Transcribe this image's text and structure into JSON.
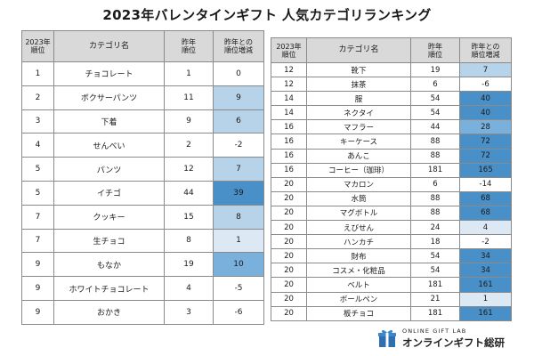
{
  "title": "2023年バレンタインギフト 人気カテゴリランキング",
  "headers": {
    "rank": [
      "2023年",
      "順位"
    ],
    "category": "カテゴリ名",
    "prev_rank": [
      "昨年",
      "順位"
    ],
    "change": [
      "昨年との",
      "順位増減"
    ]
  },
  "colors": {
    "header_bg": "#d9d9d9",
    "change_zero_or_negative": "#ffffff",
    "change_small": "#dce9f5",
    "change_medium": "#b7d3ea",
    "change_large": "#7ab0dc",
    "change_largest": "#4a90c8"
  },
  "footer": {
    "logo_small": "ONLINE GIFT LAB",
    "logo_big": "オンラインギフト総研",
    "logo_icon": "gift-box-icon"
  },
  "chart_data": {
    "type": "table",
    "title": "2023年バレンタインギフト 人気カテゴリランキング",
    "columns": [
      "2023年順位",
      "カテゴリ名",
      "昨年順位",
      "昨年との順位増減"
    ],
    "left_rows": [
      {
        "rank": "1",
        "name": "チョコレート",
        "prev": "1",
        "change": "0"
      },
      {
        "rank": "2",
        "name": "ボクサーパンツ",
        "prev": "11",
        "change": "9"
      },
      {
        "rank": "3",
        "name": "下着",
        "prev": "9",
        "change": "6"
      },
      {
        "rank": "4",
        "name": "せんべい",
        "prev": "2",
        "change": "-2"
      },
      {
        "rank": "5",
        "name": "パンツ",
        "prev": "12",
        "change": "7"
      },
      {
        "rank": "5",
        "name": "イチゴ",
        "prev": "44",
        "change": "39"
      },
      {
        "rank": "7",
        "name": "クッキー",
        "prev": "15",
        "change": "8"
      },
      {
        "rank": "7",
        "name": "生チョコ",
        "prev": "8",
        "change": "1"
      },
      {
        "rank": "9",
        "name": "もなか",
        "prev": "19",
        "change": "10"
      },
      {
        "rank": "9",
        "name": "ホワイトチョコレート",
        "prev": "4",
        "change": "-5"
      },
      {
        "rank": "9",
        "name": "おかき",
        "prev": "3",
        "change": "-6"
      }
    ],
    "right_rows": [
      {
        "rank": "12",
        "name": "靴下",
        "prev": "19",
        "change": "7"
      },
      {
        "rank": "12",
        "name": "抹茶",
        "prev": "6",
        "change": "-6"
      },
      {
        "rank": "14",
        "name": "服",
        "prev": "54",
        "change": "40"
      },
      {
        "rank": "14",
        "name": "ネクタイ",
        "prev": "54",
        "change": "40"
      },
      {
        "rank": "16",
        "name": "マフラー",
        "prev": "44",
        "change": "28"
      },
      {
        "rank": "16",
        "name": "キーケース",
        "prev": "88",
        "change": "72"
      },
      {
        "rank": "16",
        "name": "あんこ",
        "prev": "88",
        "change": "72"
      },
      {
        "rank": "16",
        "name": "コーヒー（珈琲）",
        "prev": "181",
        "change": "165"
      },
      {
        "rank": "20",
        "name": "マカロン",
        "prev": "6",
        "change": "-14"
      },
      {
        "rank": "20",
        "name": "水筒",
        "prev": "88",
        "change": "68"
      },
      {
        "rank": "20",
        "name": "マグボトル",
        "prev": "88",
        "change": "68"
      },
      {
        "rank": "20",
        "name": "えびせん",
        "prev": "24",
        "change": "4"
      },
      {
        "rank": "20",
        "name": "ハンカチ",
        "prev": "18",
        "change": "-2"
      },
      {
        "rank": "20",
        "name": "財布",
        "prev": "54",
        "change": "34"
      },
      {
        "rank": "20",
        "name": "コスメ・化粧品",
        "prev": "54",
        "change": "34"
      },
      {
        "rank": "20",
        "name": "ベルト",
        "prev": "181",
        "change": "161"
      },
      {
        "rank": "20",
        "name": "ボールペン",
        "prev": "21",
        "change": "1"
      },
      {
        "rank": "20",
        "name": "板チョコ",
        "prev": "181",
        "change": "161"
      }
    ]
  }
}
